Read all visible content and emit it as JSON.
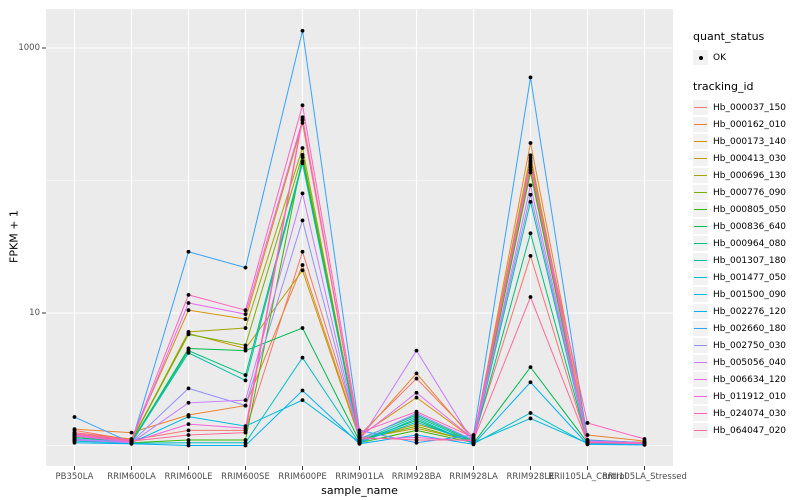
{
  "chart_data": {
    "type": "line",
    "title": "",
    "xlabel": "sample_name",
    "ylabel": "FPKM + 1",
    "y_scale": "log10",
    "grid": true,
    "panel_bg": "#EBEBEB",
    "grid_color": "#FFFFFF",
    "point_color": "#000000",
    "y_axis": {
      "major_ticks": [
        {
          "value": 10,
          "label": "10"
        },
        {
          "value": 1000,
          "label": "1000"
        }
      ],
      "minor_ticks": [
        1,
        100
      ],
      "range_log10": [
        -0.15,
        3.3
      ]
    },
    "legend": {
      "position": "right",
      "quant_status_title": "quant_status",
      "quant_status_items": [
        "OK"
      ],
      "tracking_title": "tracking_id"
    },
    "categories": [
      "PB350LA",
      "RRIM600LA",
      "RRIM600LE",
      "RRIM600SE",
      "RRIM600PE",
      "RRIM901LA",
      "RRIM928BA",
      "RRIM928LA",
      "RRIM928LE",
      "RRII105LA_Control",
      "RRII105LA_Stressed"
    ],
    "series": [
      {
        "name": "Hb_000037_150",
        "color": "#F8766D",
        "values": [
          1.3,
          1.1,
          1.3,
          1.3,
          29,
          1.2,
          3.2,
          1.15,
          27,
          1.05,
          1.05
        ]
      },
      {
        "name": "Hb_000162_010",
        "color": "#EA8331",
        "values": [
          1.33,
          1.25,
          1.7,
          2.0,
          23,
          1.15,
          3.5,
          1.1,
          192,
          1.2,
          1.08
        ]
      },
      {
        "name": "Hb_000173_140",
        "color": "#D89000",
        "values": [
          1.25,
          1.12,
          10.5,
          9.0,
          272,
          1.18,
          2.3,
          1.12,
          155,
          1.1,
          1.05
        ]
      },
      {
        "name": "Hb_000413_030",
        "color": "#C09B00",
        "values": [
          1.22,
          1.1,
          7.0,
          5.4,
          21,
          1.12,
          1.35,
          1.08,
          148,
          1.08,
          1.04
        ]
      },
      {
        "name": "Hb_000696_130",
        "color": "#A3A500",
        "values": [
          1.2,
          1.08,
          7.2,
          7.7,
          176,
          1.1,
          1.45,
          1.1,
          142,
          1.06,
          1.03
        ]
      },
      {
        "name": "Hb_000776_090",
        "color": "#7CAE00",
        "values": [
          1.18,
          1.08,
          6.9,
          5.7,
          156,
          1.1,
          1.4,
          1.06,
          120,
          1.05,
          1.06
        ]
      },
      {
        "name": "Hb_000805_050",
        "color": "#39B600",
        "values": [
          1.1,
          1.05,
          1.1,
          1.1,
          150,
          1.05,
          1.3,
          1.05,
          115,
          1.04,
          1.02
        ]
      },
      {
        "name": "Hb_000836_640",
        "color": "#00BB4E",
        "values": [
          1.15,
          1.06,
          5.4,
          5.2,
          7.7,
          1.08,
          1.55,
          1.04,
          3.9,
          1.05,
          1.03
        ]
      },
      {
        "name": "Hb_000964_080",
        "color": "#00BF7D",
        "values": [
          1.15,
          1.07,
          5.2,
          3.4,
          140,
          1.12,
          1.7,
          1.08,
          40,
          1.06,
          1.04
        ]
      },
      {
        "name": "Hb_001307_180",
        "color": "#00C1A3",
        "values": [
          1.12,
          1.05,
          5.0,
          3.1,
          135,
          1.08,
          1.65,
          1.06,
          69,
          1.05,
          1.03
        ]
      },
      {
        "name": "Hb_001477_050",
        "color": "#00BFC4",
        "values": [
          1.08,
          1.04,
          1.05,
          1.05,
          4.6,
          1.04,
          1.6,
          1.03,
          1.76,
          1.03,
          1.02
        ]
      },
      {
        "name": "Hb_001500_090",
        "color": "#00BAE0",
        "values": [
          1.1,
          1.05,
          1.65,
          1.4,
          2.2,
          1.06,
          1.5,
          1.05,
          1.6,
          1.04,
          1.02
        ]
      },
      {
        "name": "Hb_002276_120",
        "color": "#00B0F6",
        "values": [
          1.05,
          1.03,
          1.0,
          1.0,
          2.6,
          1.03,
          1.2,
          1.02,
          3.0,
          1.02,
          1.01
        ]
      },
      {
        "name": "Hb_002660_180",
        "color": "#35A2FF",
        "values": [
          1.64,
          1.05,
          29,
          22,
          1350,
          1.3,
          1.05,
          1.2,
          600,
          1.1,
          1.05
        ]
      },
      {
        "name": "Hb_002750_030",
        "color": "#9590FF",
        "values": [
          1.12,
          1.06,
          2.7,
          2.0,
          50,
          1.1,
          1.75,
          1.1,
          78,
          1.06,
          1.04
        ]
      },
      {
        "name": "Hb_005056_040",
        "color": "#C77CFF",
        "values": [
          1.1,
          1.05,
          2.1,
          2.2,
          80,
          1.08,
          5.2,
          1.05,
          92,
          1.05,
          1.03
        ]
      },
      {
        "name": "Hb_006634_120",
        "color": "#E76BF3",
        "values": [
          1.2,
          1.08,
          11.9,
          9.8,
          285,
          1.15,
          2.5,
          1.12,
          138,
          1.08,
          1.05
        ]
      },
      {
        "name": "Hb_011912_010",
        "color": "#FA62DB",
        "values": [
          1.18,
          1.06,
          1.45,
          1.35,
          300,
          1.12,
          1.15,
          1.08,
          132,
          1.06,
          1.04
        ]
      },
      {
        "name": "Hb_024074_030",
        "color": "#FF62BC",
        "values": [
          1.25,
          1.1,
          13.7,
          10.5,
          370,
          1.25,
          1.8,
          1.15,
          126,
          1.48,
          1.12
        ]
      },
      {
        "name": "Hb_064047_020",
        "color": "#FF6A98",
        "values": [
          1.22,
          1.08,
          1.2,
          1.25,
          290,
          1.15,
          1.1,
          1.1,
          13.2,
          1.05,
          1.04
        ]
      }
    ]
  }
}
